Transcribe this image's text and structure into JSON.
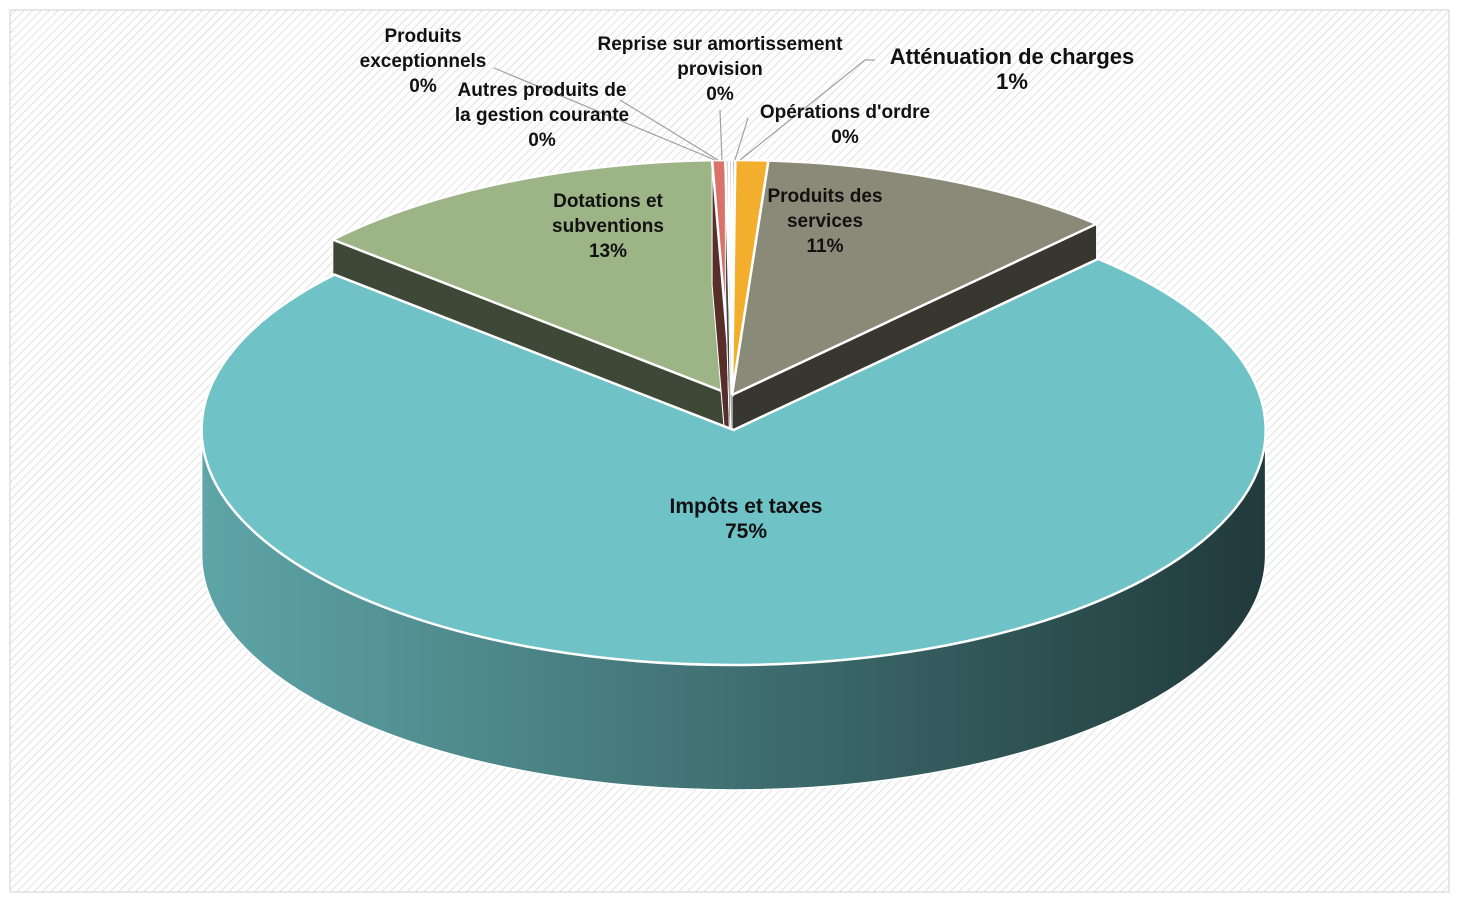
{
  "chart_data": {
    "type": "pie",
    "categories": [
      "Opérations d'ordre",
      "Atténuation de charges",
      "Produits des services",
      "Impôts et taxes",
      "Dotations et subventions",
      "Autres produits de la gestion courante",
      "Produits exceptionnels",
      "Reprise sur amortissement provision"
    ],
    "values": [
      0.1,
      1,
      11,
      75,
      13,
      0.4,
      0.1,
      0.1
    ],
    "value_labels": [
      "0%",
      "1%",
      "11%",
      "75%",
      "13%",
      "0%",
      "0%",
      "0%"
    ],
    "colors": [
      "#9a9a9a",
      "#f2ae2c",
      "#8a8a78",
      "#6fc2c6",
      "#9cb486",
      "#d9726a",
      "#b0b0b0",
      "#c8c8c8"
    ],
    "explode": "Impôts et taxes"
  }
}
